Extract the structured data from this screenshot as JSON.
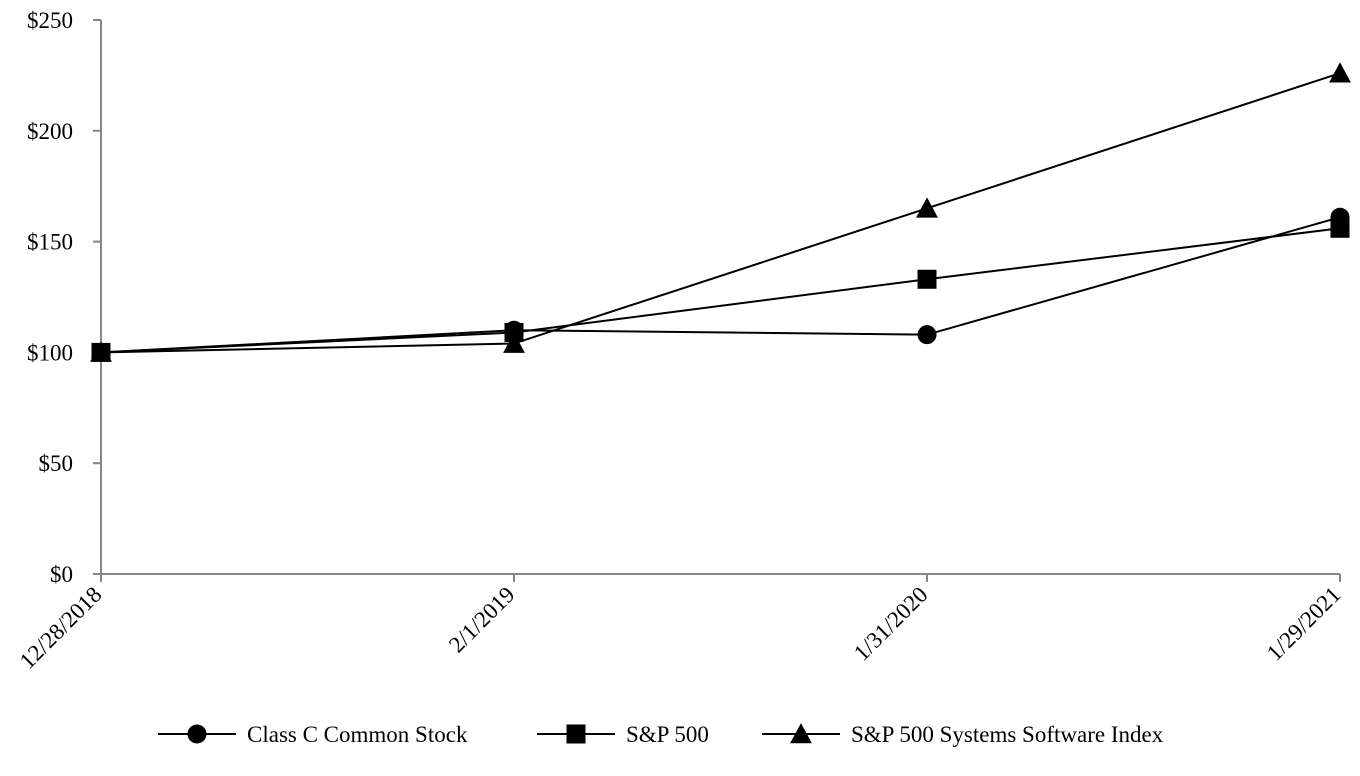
{
  "chart_data": {
    "type": "line",
    "title": "",
    "xlabel": "",
    "ylabel": "",
    "categories": [
      "12/28/2018",
      "2/1/2019",
      "1/31/2020",
      "1/29/2021"
    ],
    "ylim": [
      0,
      250
    ],
    "yticks": [
      0,
      50,
      100,
      150,
      200,
      250
    ],
    "ytick_labels": [
      "$0",
      "$50",
      "$100",
      "$150",
      "$200",
      "$250"
    ],
    "grid": false,
    "legend_position": "bottom",
    "series": [
      {
        "name": "Class C Common Stock",
        "marker": "circle",
        "color": "#000000",
        "values": [
          100,
          110,
          108,
          161
        ]
      },
      {
        "name": "S&P 500",
        "marker": "square",
        "color": "#000000",
        "values": [
          100,
          109,
          133,
          156
        ]
      },
      {
        "name": "S&P 500 Systems Software Index",
        "marker": "triangle",
        "color": "#000000",
        "values": [
          100,
          104,
          165,
          226
        ]
      }
    ]
  }
}
